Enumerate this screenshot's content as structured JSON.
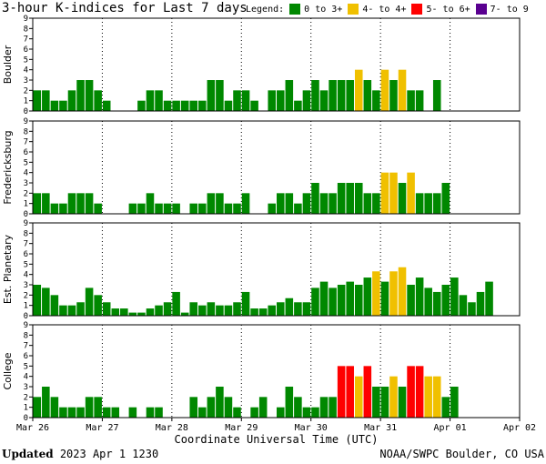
{
  "header": {
    "title": "3-hour K-indices for Last 7 days",
    "legend_label": "Legend:",
    "legend": [
      {
        "label": "0 to 3+",
        "color": "#008800"
      },
      {
        "label": "4- to 4+",
        "color": "#f0c000"
      },
      {
        "label": "5- to 6+",
        "color": "#ff0000"
      },
      {
        "label": "7- to 9",
        "color": "#5a0090"
      }
    ]
  },
  "footer": {
    "updated_label": "Updated",
    "updated_time": "2023 Apr  1 1230",
    "source": "NOAA/SWPC Boulder, CO USA"
  },
  "chart_data": {
    "type": "bar",
    "title": "3-hour K-indices for Last 7 days",
    "xlabel": "Coordinate Universal Time (UTC)",
    "x_ticks": [
      "Mar 26",
      "Mar 27",
      "Mar 28",
      "Mar 29",
      "Mar 30",
      "Mar 31",
      "Apr 01",
      "Apr 02"
    ],
    "ylim": [
      0,
      9
    ],
    "y_ticks": [
      0,
      1,
      2,
      3,
      4,
      5,
      6,
      7,
      8,
      9
    ],
    "color_thresholds": [
      {
        "range": "0 to 3+",
        "max": 3.99,
        "color": "#008800"
      },
      {
        "range": "4- to 4+",
        "max": 4.99,
        "color": "#f0c000"
      },
      {
        "range": "5- to 6+",
        "max": 6.99,
        "color": "#ff0000"
      },
      {
        "range": "7- to 9",
        "max": 9,
        "color": "#5a0090"
      }
    ],
    "panels": [
      {
        "ylabel": "Boulder",
        "values": [
          2,
          2,
          1,
          1,
          2,
          3,
          3,
          2,
          1,
          0,
          0,
          0,
          1,
          2,
          2,
          1,
          1,
          1,
          1,
          1,
          3,
          3,
          1,
          2,
          2,
          1,
          0,
          2,
          2,
          3,
          1,
          2,
          3,
          2,
          3,
          3,
          3,
          4,
          3,
          2,
          4,
          3,
          4,
          2,
          2,
          0,
          3,
          0,
          0,
          0,
          0,
          0,
          0,
          0,
          0,
          0
        ]
      },
      {
        "ylabel": "Fredericksburg",
        "values": [
          2,
          2,
          1,
          1,
          2,
          2,
          2,
          1,
          0,
          0,
          0,
          1,
          1,
          2,
          1,
          1,
          1,
          0,
          1,
          1,
          2,
          2,
          1,
          1,
          2,
          0,
          0,
          1,
          2,
          2,
          1,
          2,
          3,
          2,
          2,
          3,
          3,
          3,
          2,
          2,
          4,
          4,
          3,
          4,
          2,
          2,
          2,
          3,
          0,
          0,
          0,
          0,
          0,
          0,
          0,
          0
        ]
      },
      {
        "ylabel": "Est. Planetary",
        "values": [
          3,
          2.7,
          2,
          1,
          1,
          1.3,
          2.7,
          2,
          1.3,
          0.7,
          0.7,
          0.3,
          0.3,
          0.7,
          1,
          1.3,
          2.3,
          0.3,
          1.3,
          1,
          1.3,
          1,
          1,
          1.3,
          2.3,
          0.7,
          0.7,
          1,
          1.3,
          1.7,
          1.3,
          1.3,
          2.7,
          3.3,
          2.7,
          3,
          3.3,
          3,
          3.7,
          4.3,
          3.3,
          4.3,
          4.7,
          3,
          3.7,
          2.7,
          2.3,
          3,
          3.7,
          2,
          1.3,
          2.3,
          3.3,
          0,
          0,
          0
        ]
      },
      {
        "ylabel": "College",
        "values": [
          2,
          3,
          2,
          1,
          1,
          1,
          2,
          2,
          1,
          1,
          0,
          1,
          0,
          1,
          1,
          0,
          0,
          0,
          2,
          1,
          2,
          3,
          2,
          1,
          0,
          1,
          2,
          0,
          1,
          3,
          2,
          1,
          1,
          2,
          2,
          5,
          5,
          4,
          5,
          3,
          3,
          4,
          3,
          5,
          5,
          4,
          4,
          2,
          3,
          0,
          0,
          0,
          0,
          0,
          0,
          0
        ]
      }
    ]
  }
}
